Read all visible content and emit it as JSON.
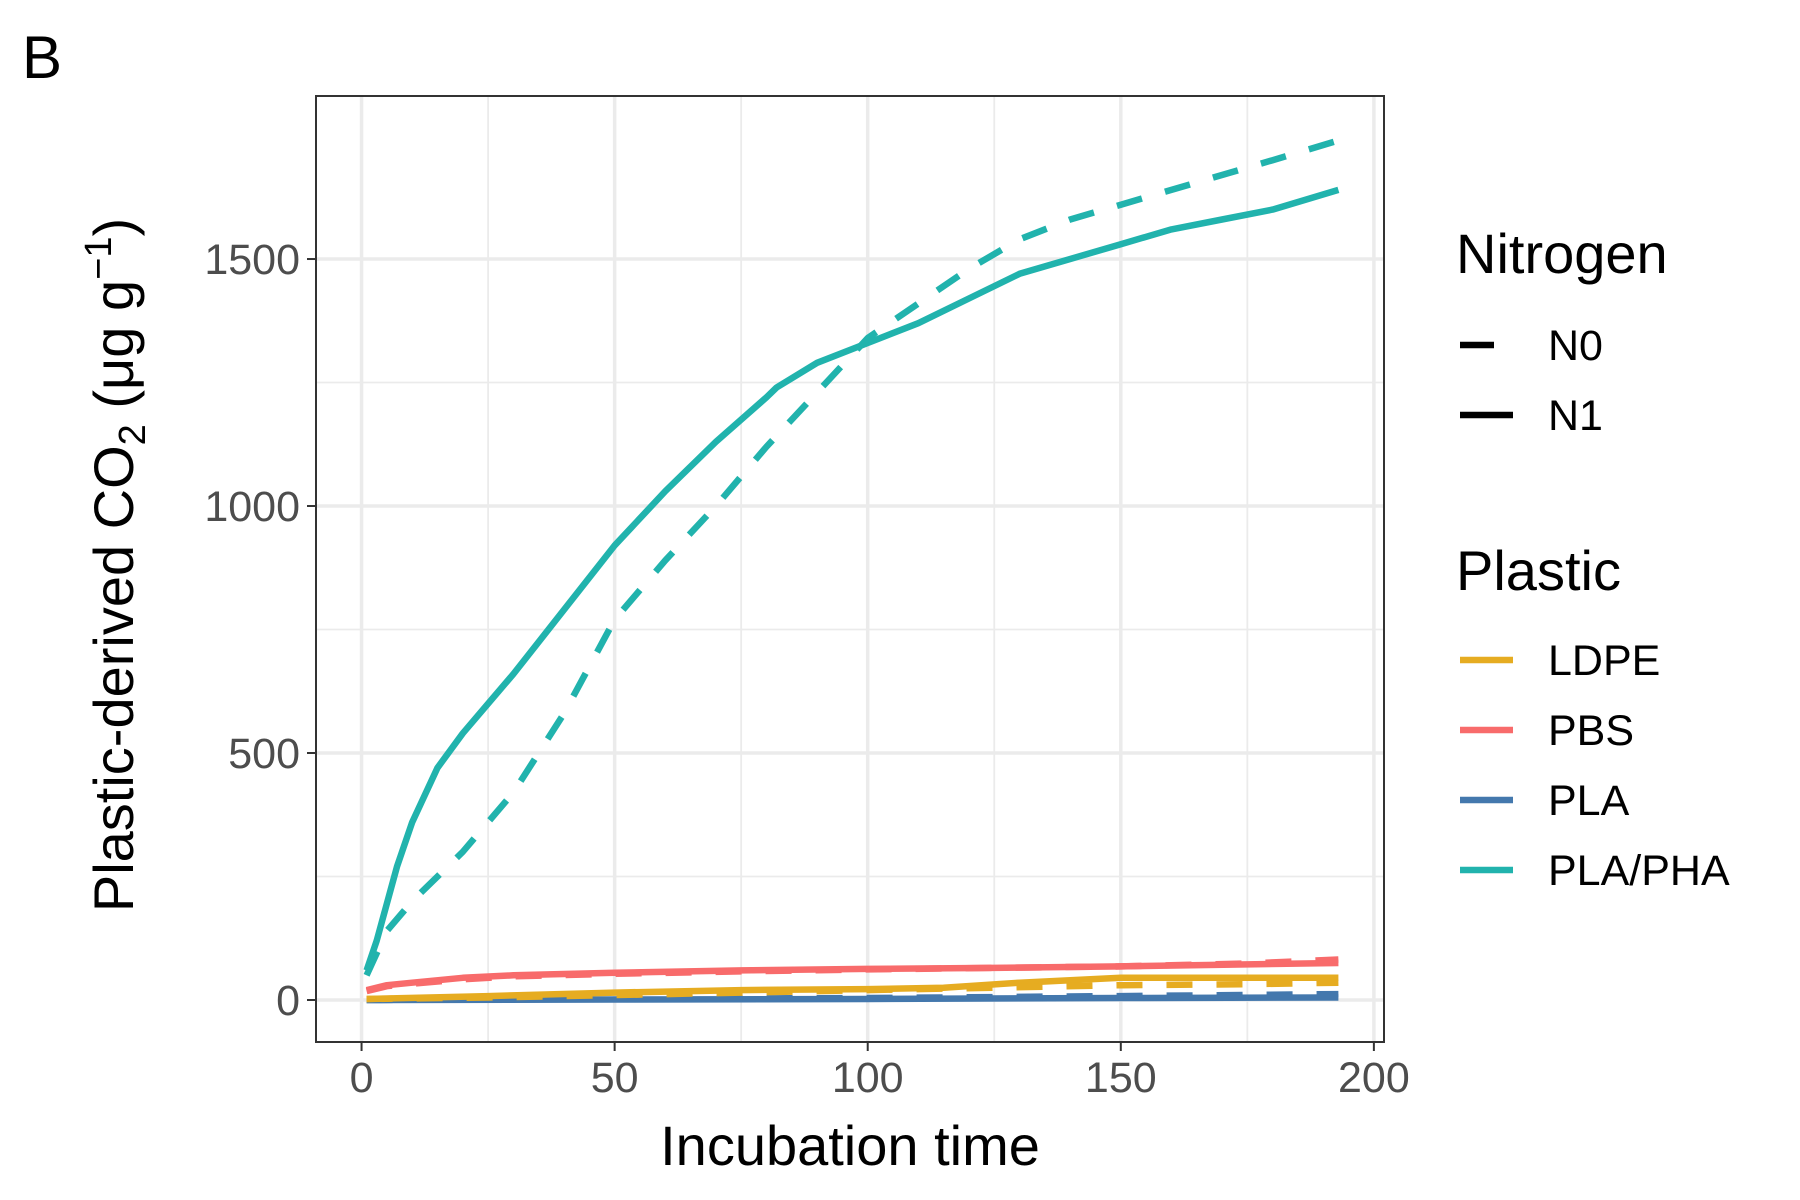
{
  "panel_label": "B",
  "colors": {
    "LDPE": "#e6ac21",
    "PBS": "#f86b6b",
    "PLA": "#4478ad",
    "PLA/PHA": "#21b3ad",
    "grid": "#ebebeb",
    "panel_border": "#333333"
  },
  "legend": {
    "nitrogen_title": "Nitrogen",
    "nitrogen_items": [
      {
        "label": "N0",
        "linetype": "dashed"
      },
      {
        "label": "N1",
        "linetype": "solid"
      }
    ],
    "plastic_title": "Plastic",
    "plastic_items": [
      {
        "label": "LDPE",
        "color": "#e6ac21"
      },
      {
        "label": "PBS",
        "color": "#f86b6b"
      },
      {
        "label": "PLA",
        "color": "#4478ad"
      },
      {
        "label": "PLA/PHA",
        "color": "#21b3ad"
      }
    ],
    "position": "right"
  },
  "chart_data": {
    "type": "line",
    "title": "",
    "xlabel": "Incubation time",
    "ylabel_parts": {
      "prefix": "Plastic-derived CO",
      "subscript": "2",
      "unit_open": " (μg g",
      "superscript": "−1",
      "unit_close": ")"
    },
    "xlim": [
      -9,
      202
    ],
    "ylim": [
      -85,
      1830
    ],
    "x_ticks": [
      0,
      50,
      100,
      150,
      200
    ],
    "x_tick_labels": [
      "0",
      "50",
      "100",
      "150",
      "200"
    ],
    "y_ticks": [
      0,
      500,
      1000,
      1500
    ],
    "y_tick_labels": [
      "0",
      "500",
      "1000",
      "1500"
    ],
    "grid": true,
    "series": [
      {
        "plastic": "PLA/PHA",
        "nitrogen": "N1",
        "linetype": "solid",
        "x": [
          1,
          3,
          7,
          10,
          15,
          20,
          25,
          30,
          40,
          50,
          60,
          70,
          80,
          82,
          90,
          100,
          110,
          120,
          130,
          140,
          150,
          160,
          170,
          180,
          193
        ],
        "y": [
          60,
          120,
          270,
          360,
          470,
          540,
          600,
          660,
          790,
          920,
          1030,
          1130,
          1220,
          1240,
          1290,
          1330,
          1370,
          1420,
          1470,
          1500,
          1530,
          1560,
          1580,
          1600,
          1640
        ]
      },
      {
        "plastic": "PLA/PHA",
        "nitrogen": "N0",
        "linetype": "dashed",
        "x": [
          1,
          5,
          10,
          20,
          30,
          40,
          50,
          60,
          70,
          80,
          90,
          100,
          110,
          120,
          130,
          140,
          150,
          160,
          170,
          180,
          193
        ],
        "y": [
          50,
          140,
          200,
          300,
          420,
          580,
          770,
          890,
          1000,
          1120,
          1230,
          1340,
          1410,
          1480,
          1540,
          1580,
          1610,
          1640,
          1670,
          1700,
          1740
        ]
      },
      {
        "plastic": "PBS",
        "nitrogen": "N1",
        "linetype": "solid",
        "x": [
          1,
          5,
          10,
          20,
          30,
          50,
          75,
          100,
          125,
          150,
          175,
          193
        ],
        "y": [
          20,
          30,
          35,
          45,
          50,
          55,
          60,
          63,
          65,
          68,
          72,
          75
        ]
      },
      {
        "plastic": "PBS",
        "nitrogen": "N0",
        "linetype": "dashed",
        "x": [
          1,
          5,
          10,
          20,
          30,
          50,
          75,
          100,
          125,
          150,
          175,
          193
        ],
        "y": [
          18,
          28,
          33,
          42,
          48,
          53,
          58,
          62,
          65,
          68,
          74,
          82
        ]
      },
      {
        "plastic": "LDPE",
        "nitrogen": "N1",
        "linetype": "solid",
        "x": [
          1,
          25,
          50,
          75,
          100,
          115,
          130,
          150,
          175,
          193
        ],
        "y": [
          2,
          8,
          15,
          20,
          22,
          25,
          35,
          45,
          45,
          45
        ]
      },
      {
        "plastic": "LDPE",
        "nitrogen": "N0",
        "linetype": "dashed",
        "x": [
          1,
          25,
          50,
          75,
          100,
          125,
          150,
          175,
          193
        ],
        "y": [
          2,
          5,
          10,
          15,
          20,
          25,
          30,
          32,
          35
        ]
      },
      {
        "plastic": "PLA",
        "nitrogen": "N1",
        "linetype": "solid",
        "x": [
          1,
          50,
          100,
          150,
          193
        ],
        "y": [
          0,
          1,
          2,
          4,
          5
        ]
      },
      {
        "plastic": "PLA",
        "nitrogen": "N0",
        "linetype": "dashed",
        "x": [
          1,
          50,
          100,
          150,
          193
        ],
        "y": [
          0,
          2,
          4,
          8,
          12
        ]
      }
    ]
  }
}
